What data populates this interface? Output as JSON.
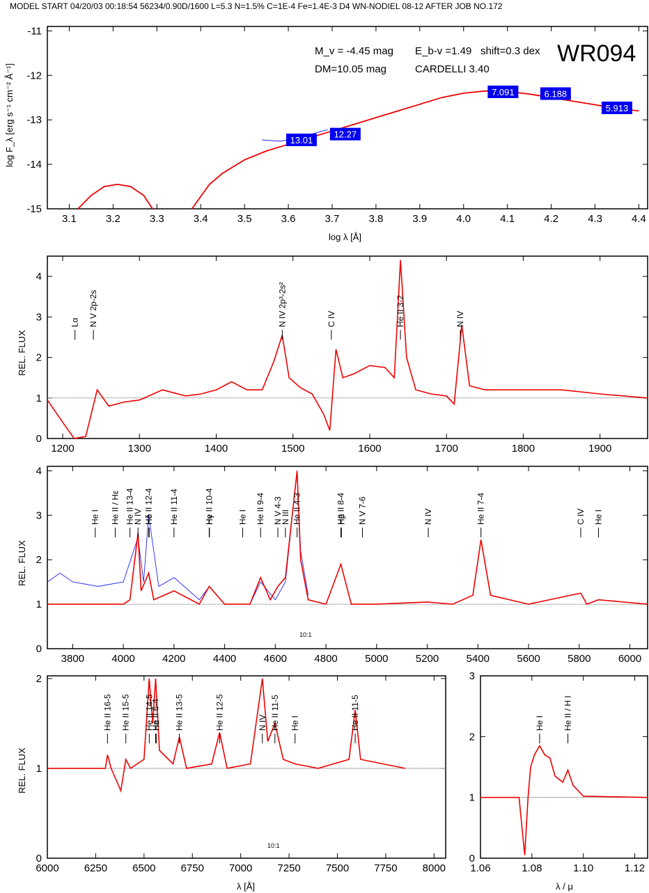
{
  "header": "MODEL START   04/20/03   00:18:54    56234/0.90D/1600  L=5.3  N=1.5%  C=1E-4  Fe=1.4E-3  D4  WN-NODIEL 08-12     AFTER JOB NO.172",
  "colors": {
    "model": "#ee0000",
    "observed": "#2222ee",
    "box": "#0000ee",
    "frame": "#000000"
  },
  "sed": {
    "star": "WR094",
    "info": [
      "M_v = -4.45 mag",
      "E_b-v =1.49",
      "shift=0.3 dex",
      "DM=10.05 mag",
      "CARDELLI 3.40"
    ],
    "xlabel": "log λ [Å]",
    "ylabel": "log F_λ [erg s⁻¹ cm⁻² Å⁻¹]",
    "xlim": [
      3.05,
      4.42
    ],
    "ylim": [
      -15,
      -10.9
    ],
    "xticks": [
      "3.1",
      "3.2",
      "3.3",
      "3.4",
      "3.5",
      "3.6",
      "3.7",
      "3.8",
      "3.9",
      "4.0",
      "4.1",
      "4.2",
      "4.3",
      "4.4"
    ],
    "yticks": [
      "-11",
      "-12",
      "-13",
      "-14",
      "-15"
    ],
    "photometry": [
      {
        "label": "13.01",
        "x": 3.63,
        "y": -13.45
      },
      {
        "label": "12.27",
        "x": 3.73,
        "y": -13.32
      },
      {
        "label": "7.091",
        "x": 4.09,
        "y": -12.37
      },
      {
        "label": "6.188",
        "x": 4.21,
        "y": -12.41
      },
      {
        "label": "5.913",
        "x": 4.35,
        "y": -12.73
      }
    ]
  },
  "panels": {
    "uv": {
      "ylabel": "REL. FLUX",
      "xlim": [
        1180,
        1962
      ],
      "ylim": [
        0,
        4.5
      ],
      "xticks": [
        "1200",
        "1300",
        "1400",
        "1500",
        "1600",
        "1700",
        "1800",
        "1900"
      ],
      "yticks": [
        "0",
        "1",
        "2",
        "3",
        "4"
      ],
      "lines": [
        {
          "label": "Lα",
          "x": 1216,
          "h": 2.5
        },
        {
          "label": "N V 2p-2s",
          "x": 1240,
          "h": 2.5
        },
        {
          "label": "N IV 2p³-2s²",
          "x": 1486,
          "h": 2.5
        },
        {
          "label": "C IV",
          "x": 1550,
          "h": 2.5
        },
        {
          "label": "He II 3-2",
          "x": 1640,
          "h": 2.5
        },
        {
          "label": "N IV",
          "x": 1718,
          "h": 2.5
        }
      ]
    },
    "opt": {
      "ylabel": "REL. FLUX",
      "xlim": [
        3700,
        6070
      ],
      "ylim": [
        0,
        4.1
      ],
      "xticks": [
        "3800",
        "4000",
        "4200",
        "4400",
        "4600",
        "4800",
        "5000",
        "5200",
        "5400",
        "5600",
        "5800",
        "6000"
      ],
      "yticks": [
        "0",
        "1",
        "2",
        "3",
        "4"
      ],
      "inset_label": "10:1",
      "lines": [
        {
          "label": "He I",
          "x": 3889,
          "h": 3.7
        },
        {
          "label": "He II / Hε",
          "x": 3968,
          "h": 3.7
        },
        {
          "label": "He II 13-4",
          "x": 4026,
          "h": 3.7
        },
        {
          "label": "N IV",
          "x": 4058,
          "h": 3.7
        },
        {
          "label": "He II 12-4",
          "x": 4100,
          "h": 3.7
        },
        {
          "label": "Hδ",
          "x": 4102,
          "h": 3.7
        },
        {
          "label": "He II 11-4",
          "x": 4200,
          "h": 3.7
        },
        {
          "label": "He II 10-4",
          "x": 4339,
          "h": 3.7
        },
        {
          "label": "Hγ",
          "x": 4340,
          "h": 3.7
        },
        {
          "label": "He I",
          "x": 4471,
          "h": 3.7
        },
        {
          "label": "He II 9-4",
          "x": 4542,
          "h": 3.7
        },
        {
          "label": "N V 4-3",
          "x": 4610,
          "h": 3.7
        },
        {
          "label": "N III",
          "x": 4640,
          "h": 3.7
        },
        {
          "label": "He II 4-3",
          "x": 4686,
          "h": 3.7
        },
        {
          "label": "He II 8-4",
          "x": 4859,
          "h": 3.7
        },
        {
          "label": "Hβ",
          "x": 4861,
          "h": 3.7
        },
        {
          "label": "N V 7-6",
          "x": 4944,
          "h": 3.7
        },
        {
          "label": "N IV",
          "x": 5204,
          "h": 3.7
        },
        {
          "label": "He II 7-4",
          "x": 5412,
          "h": 3.7
        },
        {
          "label": "C IV",
          "x": 5806,
          "h": 3.7
        },
        {
          "label": "He I",
          "x": 5876,
          "h": 3.7
        }
      ]
    },
    "red": {
      "ylabel": "REL. FLUX",
      "xlabel": "λ [Å]",
      "xlim": [
        6000,
        8060
      ],
      "ylim": [
        0,
        2.03
      ],
      "xticks": [
        "6000",
        "6250",
        "6500",
        "6750",
        "7000",
        "7250",
        "7500",
        "7750",
        "8000"
      ],
      "yticks": [
        "0",
        "1",
        "2"
      ],
      "inset_label": "10:1",
      "lines": [
        {
          "label": "He II 16-5",
          "x": 6311
        },
        {
          "label": "He II 15-5",
          "x": 6406
        },
        {
          "label": "He II 14-5",
          "x": 6527
        },
        {
          "label": "He II 6-4",
          "x": 6560
        },
        {
          "label": "Hα",
          "x": 6563
        },
        {
          "label": "He II 13-5",
          "x": 6683
        },
        {
          "label": "He II 12-5",
          "x": 6891
        },
        {
          "label": "N IV",
          "x": 7112
        },
        {
          "label": "He II 11-5",
          "x": 7177
        },
        {
          "label": "He I",
          "x": 7281
        },
        {
          "label": "He II 11-5",
          "x": 7592
        }
      ]
    },
    "ir": {
      "xlabel": "λ / μ",
      "xlim": [
        1.06,
        1.125
      ],
      "ylim": [
        0,
        3
      ],
      "xticks": [
        "1.06",
        "1.08",
        "1.10",
        "1.12"
      ],
      "yticks": [
        "0",
        "1",
        "2",
        "3"
      ],
      "lines": [
        {
          "label": "He I",
          "x": 1.083
        },
        {
          "label": "He II / H I",
          "x": 1.094
        }
      ]
    }
  },
  "chart_data": [
    {
      "type": "line",
      "title": "WR094",
      "xlabel": "log λ [Å]",
      "ylabel": "log F_λ [erg s⁻¹ cm⁻² Å⁻¹]",
      "xlim": [
        3.05,
        4.42
      ],
      "ylim": [
        -15,
        -10.9
      ],
      "series": [
        {
          "x": [
            3.38,
            3.42,
            3.45,
            3.5,
            3.55,
            3.6,
            3.65,
            3.7,
            3.75,
            3.8,
            3.85,
            3.9,
            3.95,
            4.0,
            4.05,
            4.1,
            4.15,
            4.2,
            4.25,
            4.3,
            4.35,
            4.4
          ],
          "values": [
            -15.0,
            -14.45,
            -14.2,
            -13.9,
            -13.7,
            -13.55,
            -13.4,
            -13.25,
            -13.1,
            -12.95,
            -12.8,
            -12.65,
            -12.5,
            -12.4,
            -12.35,
            -12.36,
            -12.42,
            -12.5,
            -12.58,
            -12.66,
            -12.74,
            -12.8
          ]
        },
        {
          "x": [
            3.12,
            3.15,
            3.18,
            3.21,
            3.24,
            3.27,
            3.29
          ],
          "values": [
            -15.0,
            -14.7,
            -14.5,
            -14.45,
            -14.5,
            -14.7,
            -15.0
          ]
        },
        {
          "x": [
            3.54,
            3.58,
            3.62,
            3.66,
            3.69
          ],
          "values": [
            -13.45,
            -13.48,
            -13.42,
            -13.3,
            -13.22
          ]
        }
      ],
      "photometry": [
        {
          "x": 3.63,
          "y": -13.45,
          "label": "13.01"
        },
        {
          "x": 3.73,
          "y": -13.32,
          "label": "12.27"
        },
        {
          "x": 4.09,
          "y": -12.37,
          "label": "7.091"
        },
        {
          "x": 4.21,
          "y": -12.41,
          "label": "6.188"
        },
        {
          "x": 4.35,
          "y": -12.73,
          "label": "5.913"
        }
      ]
    },
    {
      "type": "line",
      "xlabel": "",
      "ylabel": "REL. FLUX",
      "xlim": [
        1180,
        1962
      ],
      "ylim": [
        0,
        4.5
      ],
      "series": [
        {
          "x": [
            1180,
            1200,
            1215,
            1230,
            1245,
            1260,
            1280,
            1300,
            1330,
            1360,
            1380,
            1400,
            1420,
            1440,
            1460,
            1475,
            1486,
            1495,
            1510,
            1525,
            1540,
            1548,
            1556,
            1565,
            1580,
            1600,
            1620,
            1632,
            1640,
            1648,
            1660,
            1680,
            1700,
            1710,
            1720,
            1730,
            1750,
            1800,
            1850,
            1900,
            1962
          ],
          "values": [
            0.95,
            0.4,
            0.0,
            0.05,
            1.2,
            0.8,
            0.9,
            0.95,
            1.2,
            1.05,
            1.1,
            1.2,
            1.4,
            1.2,
            1.2,
            1.9,
            2.55,
            1.5,
            1.25,
            1.1,
            0.6,
            0.2,
            2.2,
            1.5,
            1.6,
            1.8,
            1.75,
            1.5,
            4.4,
            2.0,
            1.2,
            1.1,
            1.05,
            0.85,
            2.8,
            1.3,
            1.2,
            1.2,
            1.2,
            1.1,
            1.0
          ]
        }
      ]
    },
    {
      "type": "line",
      "xlabel": "",
      "ylabel": "REL. FLUX",
      "xlim": [
        3700,
        6070
      ],
      "ylim": [
        0,
        4.1
      ],
      "series": [
        {
          "name": "model",
          "x": [
            3700,
            3850,
            3900,
            4000,
            4026,
            4058,
            4070,
            4100,
            4120,
            4200,
            4300,
            4339,
            4400,
            4500,
            4542,
            4580,
            4610,
            4640,
            4686,
            4700,
            4730,
            4800,
            4859,
            4900,
            5000,
            5200,
            5300,
            5380,
            5412,
            5450,
            5600,
            5806,
            5830,
            5876,
            6070
          ],
          "values": [
            1.0,
            1.0,
            1.0,
            1.0,
            1.1,
            2.6,
            1.3,
            1.7,
            1.1,
            1.3,
            1.0,
            1.4,
            1.0,
            1.0,
            1.6,
            1.1,
            1.4,
            1.6,
            4.0,
            2.0,
            1.1,
            1.0,
            1.9,
            1.0,
            1.0,
            1.05,
            1.0,
            1.2,
            2.45,
            1.2,
            1.0,
            1.25,
            1.0,
            1.1,
            1.0
          ]
        },
        {
          "name": "observed",
          "x": [
            3700,
            3750,
            3800,
            3900,
            4000,
            4058,
            4080,
            4100,
            4140,
            4200,
            4300,
            4340,
            4400,
            4500,
            4542,
            4600,
            4640,
            4686,
            4700,
            4730
          ],
          "values": [
            1.5,
            1.7,
            1.5,
            1.4,
            1.5,
            2.5,
            1.5,
            3.0,
            1.4,
            1.6,
            1.1,
            1.4,
            1.0,
            1.0,
            1.5,
            1.1,
            1.5,
            4.0,
            2.2,
            1.2
          ]
        }
      ]
    },
    {
      "type": "line",
      "xlabel": "λ [Å]",
      "ylabel": "REL. FLUX",
      "xlim": [
        6000,
        8060
      ],
      "ylim": [
        0,
        2.03
      ],
      "series": [
        {
          "x": [
            6000,
            6300,
            6311,
            6330,
            6380,
            6406,
            6430,
            6500,
            6527,
            6545,
            6560,
            6580,
            6650,
            6683,
            6720,
            6850,
            6891,
            6930,
            7050,
            7112,
            7140,
            7177,
            7220,
            7281,
            7400,
            7560,
            7592,
            7620,
            7850
          ],
          "values": [
            1.0,
            1.0,
            1.15,
            1.0,
            0.75,
            1.1,
            1.0,
            1.1,
            2.0,
            1.5,
            2.0,
            1.2,
            1.05,
            1.35,
            1.0,
            1.05,
            1.4,
            1.0,
            1.05,
            2.0,
            1.3,
            1.5,
            1.1,
            1.05,
            1.0,
            1.1,
            1.65,
            1.1,
            1.0
          ]
        }
      ]
    },
    {
      "type": "line",
      "xlabel": "λ / μ",
      "ylabel": "",
      "xlim": [
        1.06,
        1.125
      ],
      "ylim": [
        0,
        3
      ],
      "series": [
        {
          "x": [
            1.06,
            1.075,
            1.0772,
            1.0785,
            1.0795,
            1.081,
            1.083,
            1.085,
            1.087,
            1.089,
            1.092,
            1.094,
            1.096,
            1.1,
            1.125
          ],
          "values": [
            1.0,
            1.0,
            0.05,
            1.0,
            1.5,
            1.7,
            1.85,
            1.7,
            1.65,
            1.35,
            1.25,
            1.45,
            1.2,
            1.02,
            1.0
          ]
        }
      ]
    }
  ]
}
